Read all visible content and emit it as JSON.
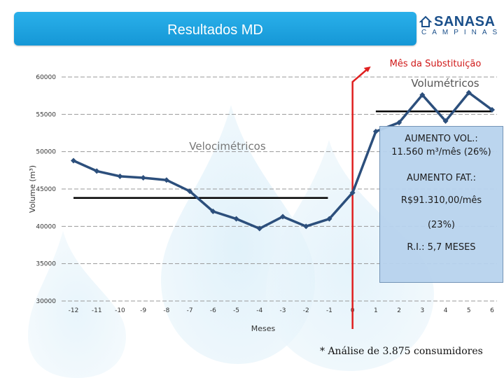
{
  "header": {
    "title": "Resultados MD"
  },
  "logo": {
    "main": "SANASA",
    "sub": "CAMPINAS"
  },
  "chart_data": {
    "type": "line",
    "x": [
      -12,
      -11,
      -10,
      -9,
      -8,
      -7,
      -6,
      -5,
      -4,
      -3,
      -2,
      -1,
      0,
      1,
      2,
      3,
      4,
      5,
      6
    ],
    "series": [
      {
        "values": [
          48800,
          47400,
          46700,
          46500,
          46200,
          44700,
          42000,
          41000,
          39700,
          41300,
          40000,
          41000,
          44500,
          52700,
          53900,
          57600,
          54100,
          57900,
          55600
        ]
      }
    ],
    "xlabel": "Meses",
    "ylabel": "Volume (m³)",
    "ylim": [
      30000,
      60000
    ],
    "yticks": [
      30000,
      35000,
      40000,
      45000,
      50000,
      55000,
      60000
    ],
    "xticks": [
      "-12",
      "-11",
      "-10",
      "-9",
      "-8",
      "-7",
      "-6",
      "-5",
      "-4",
      "-3",
      "-2",
      "-1",
      "0",
      "1",
      "2",
      "3",
      "4",
      "5",
      "6"
    ],
    "grid": true,
    "avg_lines": [
      {
        "label": "Velocimétricos",
        "value": 43800,
        "x_from": -12,
        "x_to": -1
      },
      {
        "label": "Volumétricos",
        "value": 55400,
        "x_from": 1,
        "x_to": 6
      }
    ],
    "marker": {
      "label": "Mês da Substituição",
      "x": 0
    },
    "line_color": "#2c4f7c",
    "marker_color": "#e02020"
  },
  "info_box": {
    "lines": [
      "AUMENTO VOL.:",
      "11.560 m³/mês (26%)",
      "AUMENTO FAT.:",
      "R$91.310,00/mês",
      "(23%)",
      "R.I.: 5,7 MESES"
    ]
  },
  "footnote": "* Análise de 3.875 consumidores"
}
